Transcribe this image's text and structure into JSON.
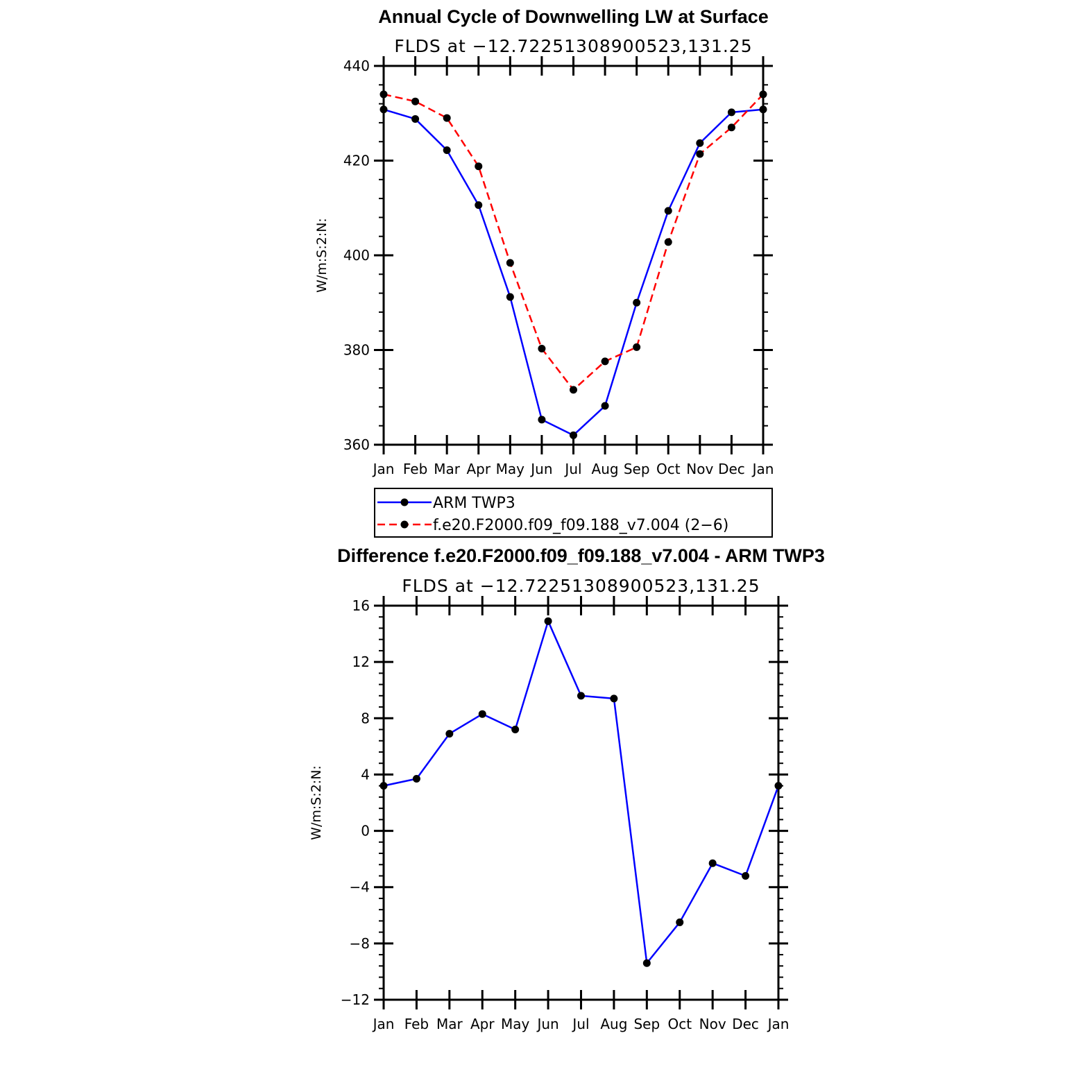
{
  "chart_data": [
    {
      "type": "line",
      "title": "Annual Cycle of Downwelling LW at Surface",
      "subtitle": "FLDS at −12.72251308900523,131.25",
      "xlabel": "",
      "ylabel": "W/m:S:2:N:",
      "categories": [
        "Jan",
        "Feb",
        "Mar",
        "Apr",
        "May",
        "Jun",
        "Jul",
        "Aug",
        "Sep",
        "Oct",
        "Nov",
        "Dec",
        "Jan"
      ],
      "yticks": [
        "360",
        "380",
        "400",
        "420",
        "440"
      ],
      "ylim": [
        360,
        440
      ],
      "series": [
        {
          "name": "ARM TWP3",
          "color": "#0000ff",
          "dash": "solid",
          "values": [
            430.8,
            428.8,
            422.2,
            410.6,
            391.2,
            365.3,
            362.0,
            368.2,
            390.0,
            409.4,
            423.7,
            430.2,
            430.8
          ]
        },
        {
          "name": "f.e20.F2000.f09_f09.188_v7.004 (2−6)",
          "color": "#ff0000",
          "dash": "dashed",
          "values": [
            434.0,
            432.5,
            429.0,
            418.8,
            398.4,
            380.3,
            371.6,
            377.6,
            380.6,
            402.8,
            421.4,
            427.0,
            434.0
          ]
        }
      ]
    },
    {
      "type": "line",
      "title": "Difference f.e20.F2000.f09_f09.188_v7.004 - ARM TWP3",
      "subtitle": "FLDS at −12.72251308900523,131.25",
      "xlabel": "",
      "ylabel": "W/m:S:2:N:",
      "categories": [
        "Jan",
        "Feb",
        "Mar",
        "Apr",
        "May",
        "Jun",
        "Jul",
        "Aug",
        "Sep",
        "Oct",
        "Nov",
        "Dec",
        "Jan"
      ],
      "yticks": [
        "−12",
        "−8",
        "−4",
        "0",
        "4",
        "8",
        "12",
        "16"
      ],
      "ylim": [
        -12,
        16
      ],
      "series": [
        {
          "name": "Difference",
          "color": "#0000ff",
          "dash": "solid",
          "values": [
            3.2,
            3.7,
            6.9,
            8.3,
            7.2,
            14.9,
            9.6,
            9.4,
            -9.4,
            -6.5,
            -2.3,
            -3.2,
            3.2
          ]
        }
      ]
    }
  ]
}
